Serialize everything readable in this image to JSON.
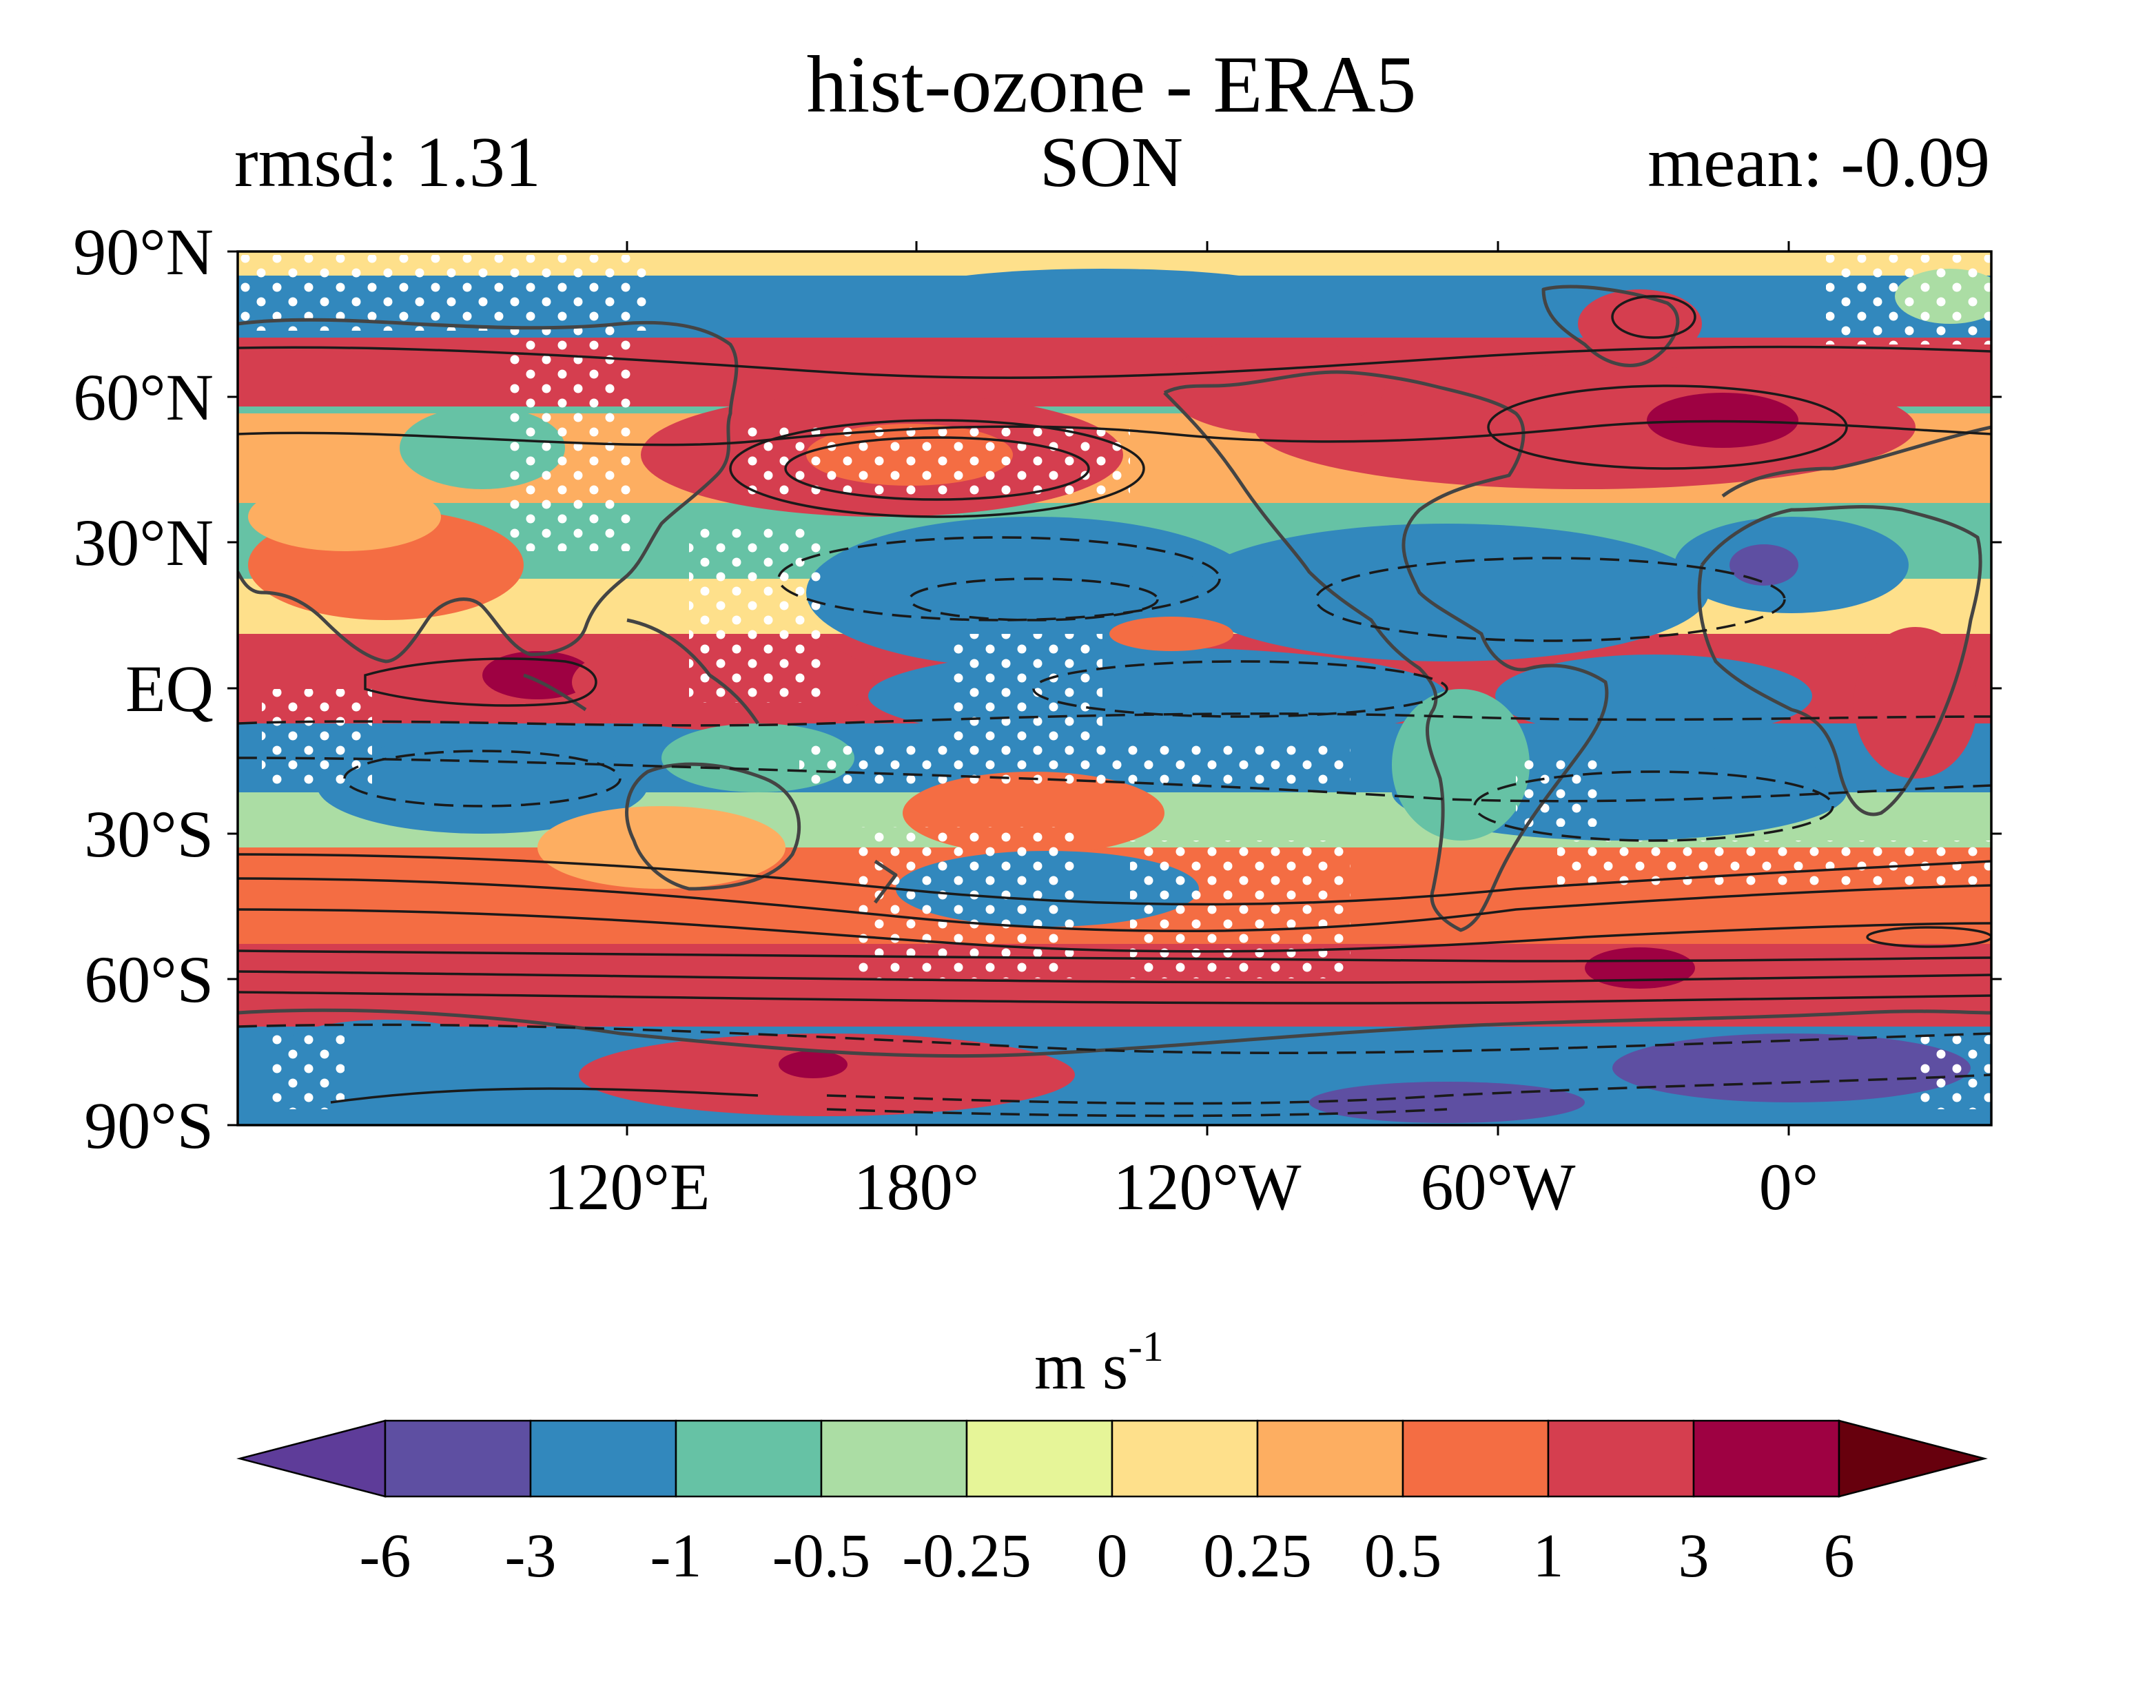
{
  "title": "hist-ozone - ERA5",
  "left_label": "rmsd: 1.31",
  "center_label": "SON",
  "right_label": "mean: -0.09",
  "lat_ticks": [
    "90°N",
    "60°N",
    "30°N",
    "EQ",
    "30°S",
    "60°S",
    "90°S"
  ],
  "lon_ticks": [
    "120°E",
    "180°",
    "120°W",
    "60°W",
    "0°"
  ],
  "colorbar": {
    "unit_base": "m s",
    "unit_exp": "-1",
    "tick_labels": [
      "-6",
      "-3",
      "-1",
      "-0.5",
      "-0.25",
      "0",
      "0.25",
      "0.5",
      "1",
      "3",
      "6"
    ],
    "colors": [
      "#5e3c99",
      "#5e4fa2",
      "#3288bd",
      "#66c2a5",
      "#abdda4",
      "#e6f598",
      "#fee08b",
      "#fdae61",
      "#f46d43",
      "#d53e4f",
      "#9e0142",
      "#67000d"
    ]
  },
  "map_colors": {
    "coastline": "#444444",
    "contour": "#1a1a1a",
    "stipple": "#ffffff"
  }
}
